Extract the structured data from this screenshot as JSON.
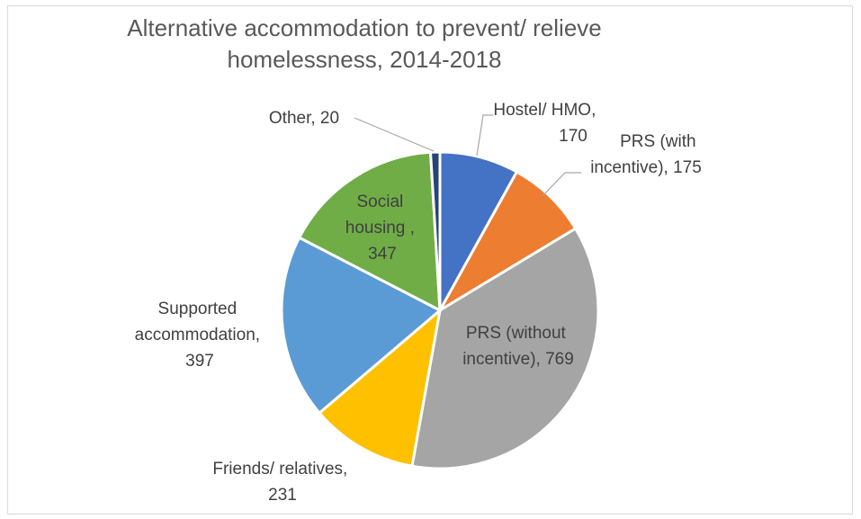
{
  "chart_data": {
    "type": "pie",
    "title_lines": [
      "Alternative accommodation to prevent/ relieve",
      "homelessness, 2014-2018"
    ],
    "slices": [
      {
        "name": "Hostel/ HMO",
        "value": 170,
        "color": "#4472c4",
        "label_lines": [
          "Hostel/ HMO,",
          "170"
        ]
      },
      {
        "name": "PRS (with incentive)",
        "value": 175,
        "color": "#ed7d31",
        "label_lines": [
          "PRS (with",
          "incentive), 175"
        ]
      },
      {
        "name": "PRS (without incentive)",
        "value": 769,
        "color": "#a5a5a5",
        "label_lines": [
          "PRS (without",
          "incentive), 769"
        ]
      },
      {
        "name": "Friends/ relatives",
        "value": 231,
        "color": "#ffc000",
        "label_lines": [
          "Friends/ relatives,",
          "231"
        ]
      },
      {
        "name": "Supported accommodation",
        "value": 397,
        "color": "#5b9bd5",
        "label_lines": [
          "Supported",
          "accommodation,",
          "397"
        ]
      },
      {
        "name": "Social housing",
        "value": 347,
        "color": "#70ad47",
        "label_lines": [
          "Social",
          "housing ,",
          "347"
        ]
      },
      {
        "name": "Other",
        "value": 20,
        "color": "#264478",
        "label_lines": [
          "Other, 20"
        ]
      }
    ]
  }
}
